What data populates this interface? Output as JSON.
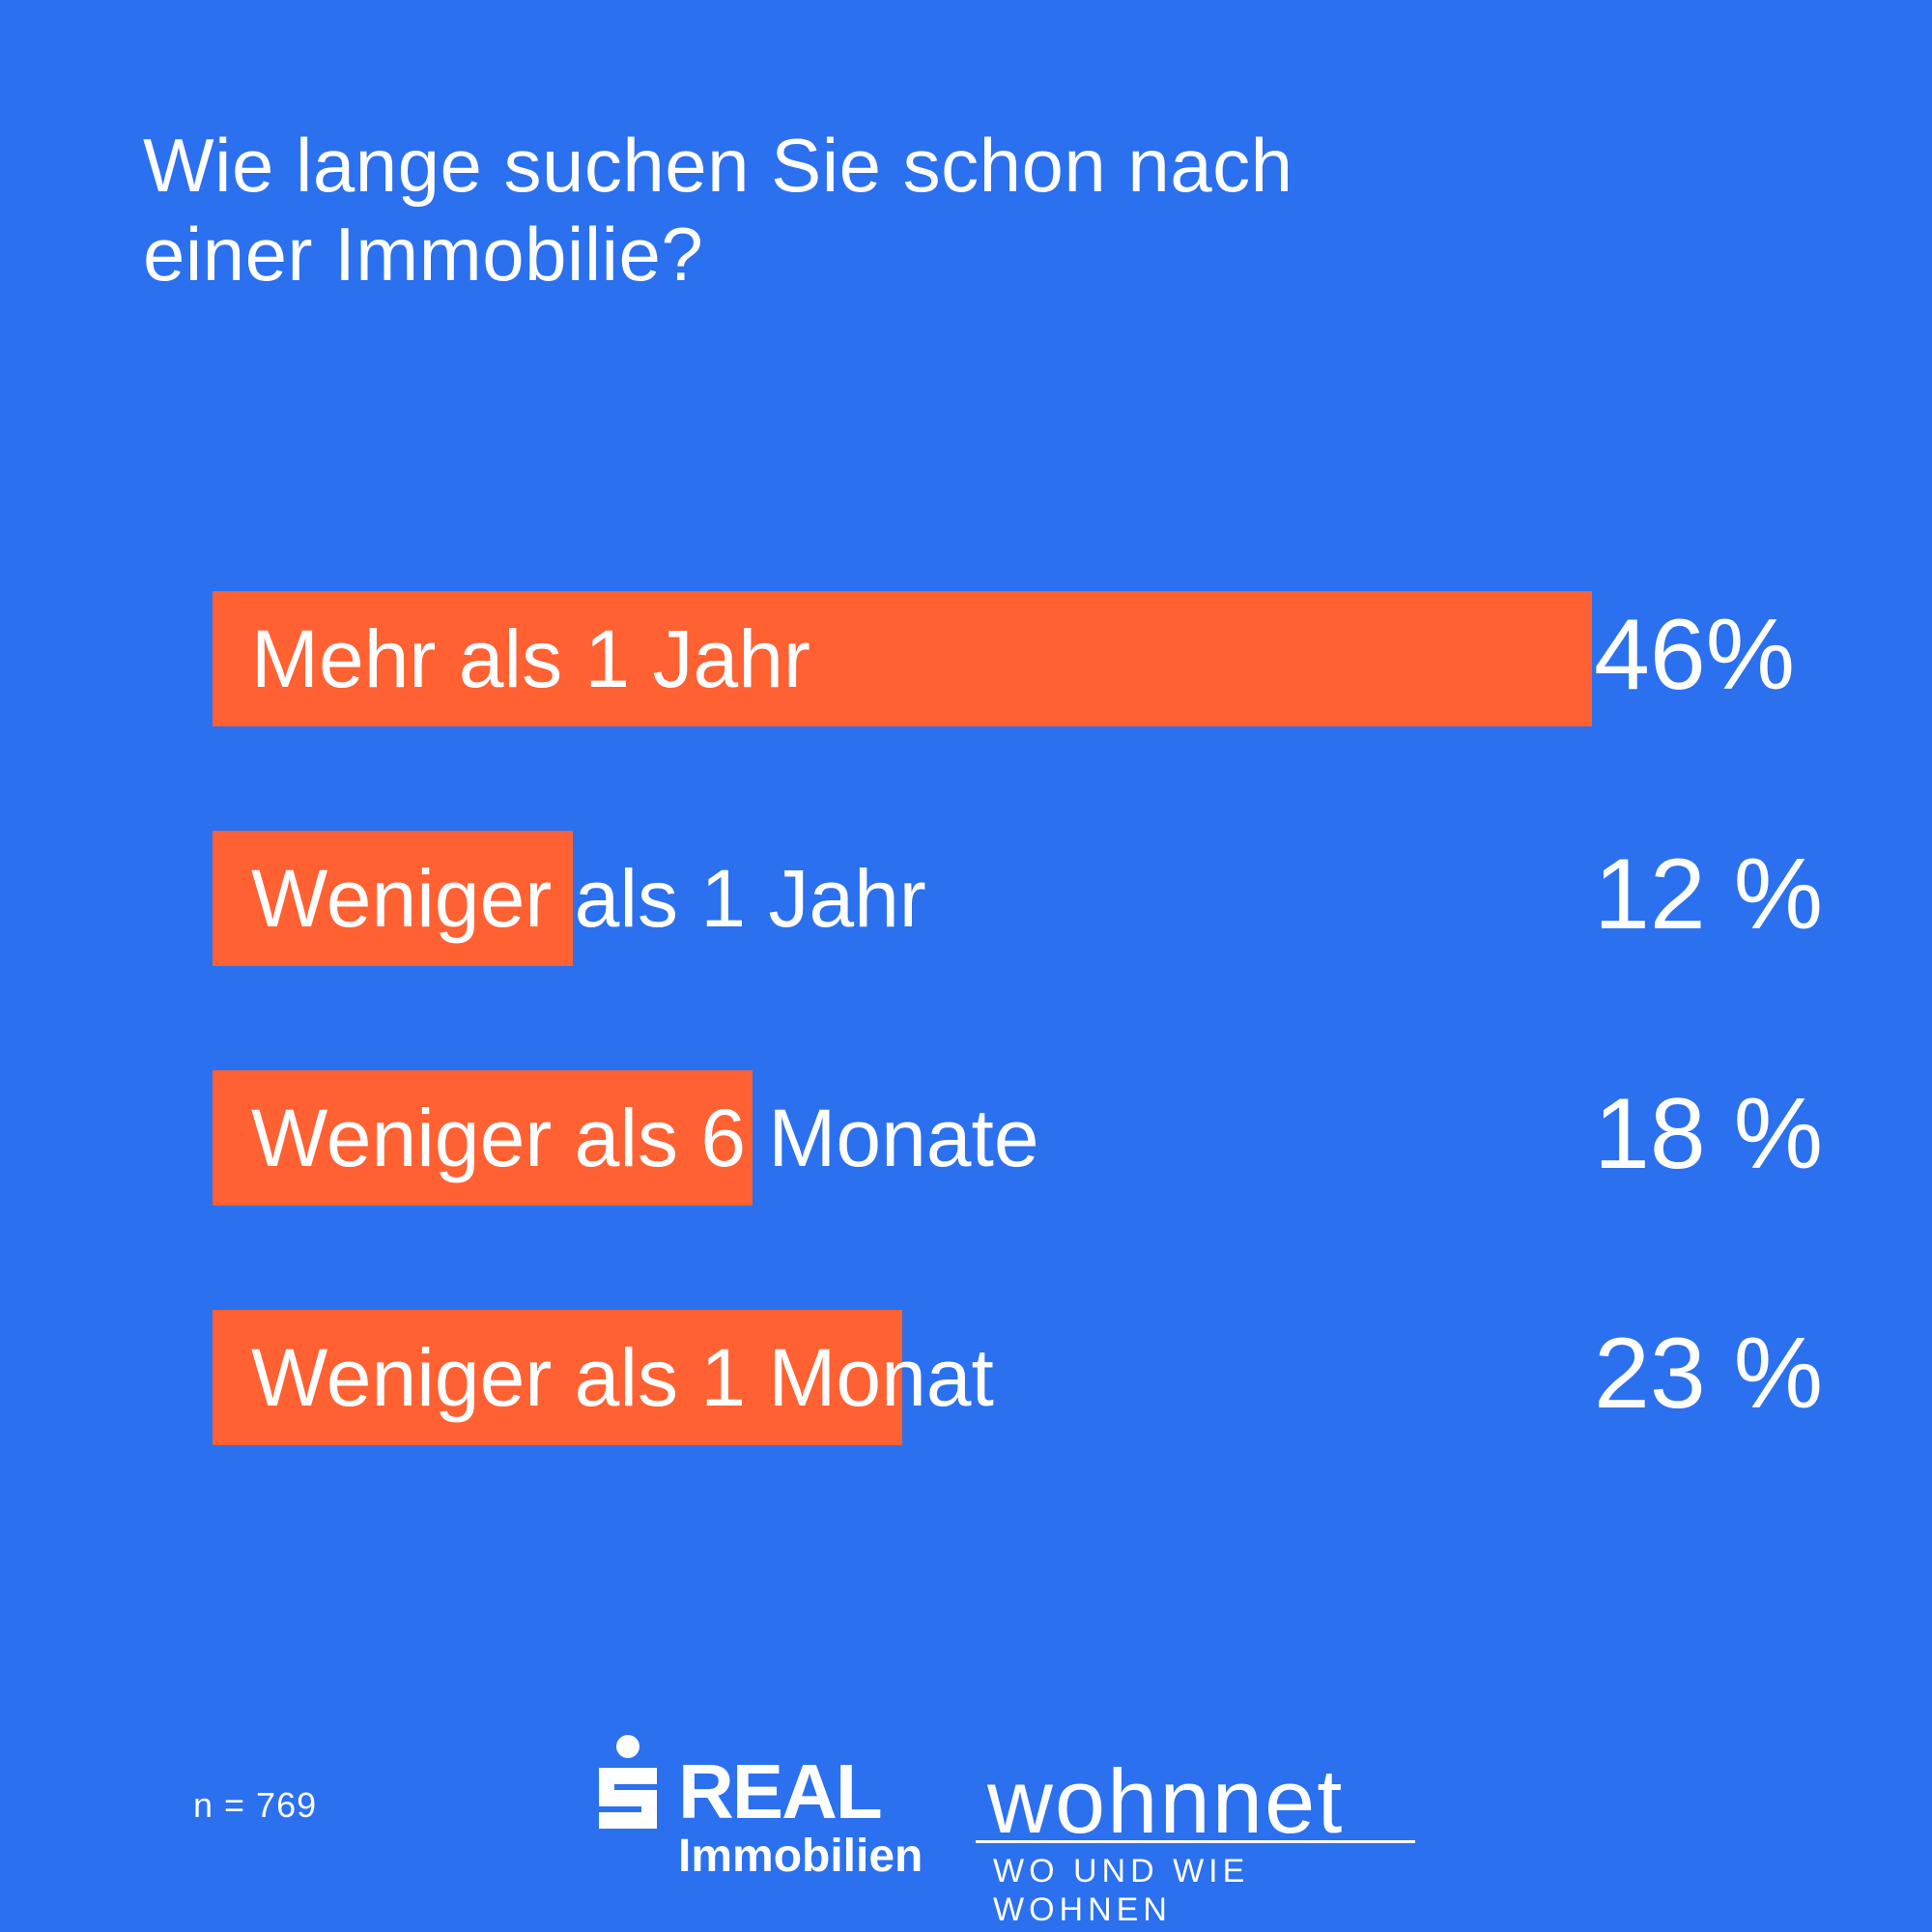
{
  "title_lines": [
    "Wie lange suchen Sie schon nach",
    "einer Immobilie?"
  ],
  "footer": {
    "sample": "n = 769"
  },
  "logos": {
    "sreal": {
      "name": "REAL",
      "sub": "Immobilien"
    },
    "wohnnet": {
      "name": "wohnnet",
      "tagline": "WO UND WIE WOHNEN"
    }
  },
  "colors": {
    "background": "#2B70EE",
    "bar": "#FF6133",
    "text": "#FFFFFF"
  },
  "chart_data": {
    "type": "bar",
    "orientation": "horizontal",
    "categories": [
      "Mehr als 1 Jahr",
      "Weniger als 1 Jahr",
      "Weniger als 6 Monate",
      "Weniger als 1 Monat"
    ],
    "values": [
      46,
      12,
      18,
      23
    ],
    "value_labels": [
      "46%",
      "12 %",
      "18 %",
      "23 %"
    ],
    "unit": "%",
    "title": "Wie lange suchen Sie schon nach einer Immobilie?",
    "xlabel": "",
    "ylabel": "",
    "xlim": [
      0,
      46
    ],
    "grid": false,
    "legend": "none"
  }
}
